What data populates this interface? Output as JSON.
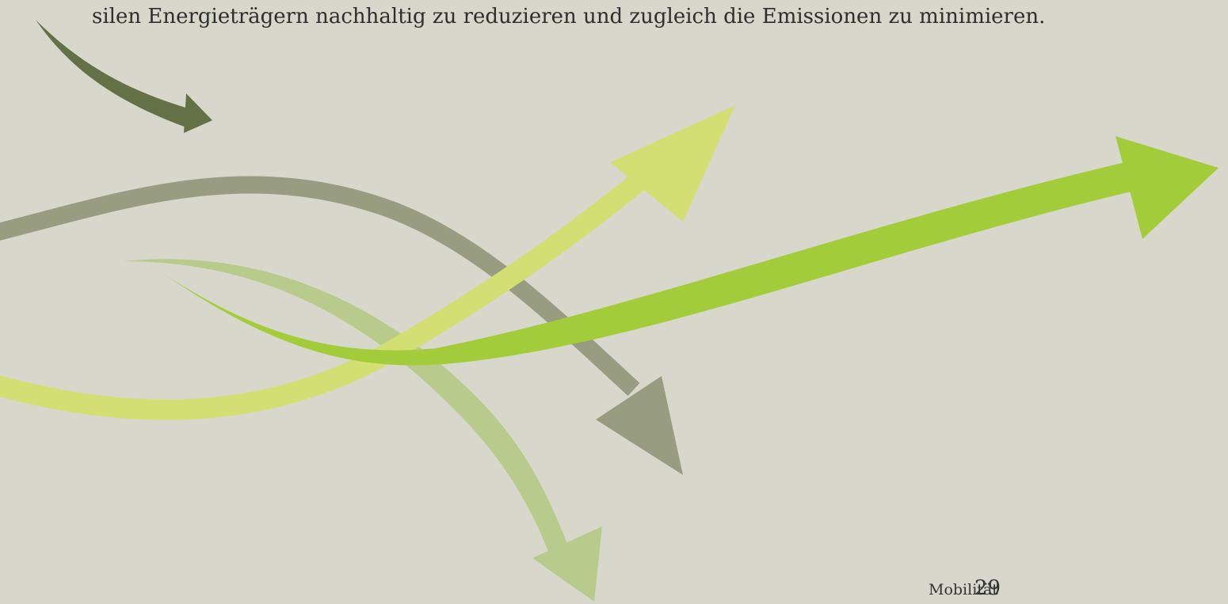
{
  "body": {
    "text": "silen Energieträgern nachhaltig zu reduzieren und zugleich die Emissionen zu minimieren."
  },
  "footer": {
    "section": "Mobilität",
    "page": "29"
  }
}
